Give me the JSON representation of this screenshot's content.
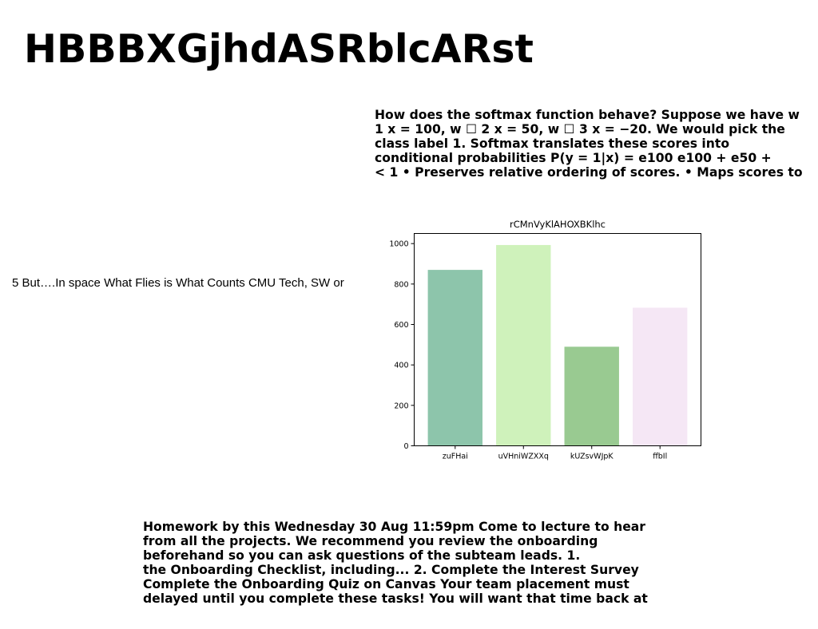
{
  "title": "HBBBXGjhdASRblcARst",
  "softmax_block": {
    "lines": [
      "How does the softmax function behave? Suppose we have w",
      "1 x = 100, w ☐ 2 x = 50, w ☐ 3 x = −20. We would pick the",
      "class label 1. Softmax translates these scores into",
      "conditional probabilities P(y = 1|x) = e100 e100 + e50 +",
      "< 1 • Preserves relative ordering of scores. • Maps scores to"
    ]
  },
  "side_caption": "5 But….In space What Flies is What Counts CMU Tech, SW or",
  "homework_block": {
    "lines": [
      "Homework by this Wednesday 30 Aug 11:59pm Come to lecture to hear",
      "from all the projects. We recommend you review the onboarding",
      "beforehand so you can ask questions of the subteam leads. 1.",
      "the Onboarding Checklist, including... 2. Complete the Interest Survey",
      "Complete the Onboarding Quiz on Canvas Your team placement must",
      "delayed until you complete these tasks! You will want that time back at"
    ]
  },
  "chart_data": {
    "type": "bar",
    "title": "rCMnVyKlAHOXBKlhc",
    "xlabel": "",
    "ylabel": "",
    "categories": [
      "zuFHai",
      "uVHniWZXXq",
      "kUZsvWJpK",
      "ffbIl"
    ],
    "values": [
      870,
      993,
      490,
      683
    ],
    "colors": [
      "#8dc5ab",
      "#cff2bb",
      "#99ca91",
      "#f5e7f5"
    ],
    "ylim": [
      0,
      1050
    ],
    "yticks": [
      0,
      200,
      400,
      600,
      800,
      1000
    ],
    "grid": false,
    "legend": "none"
  }
}
